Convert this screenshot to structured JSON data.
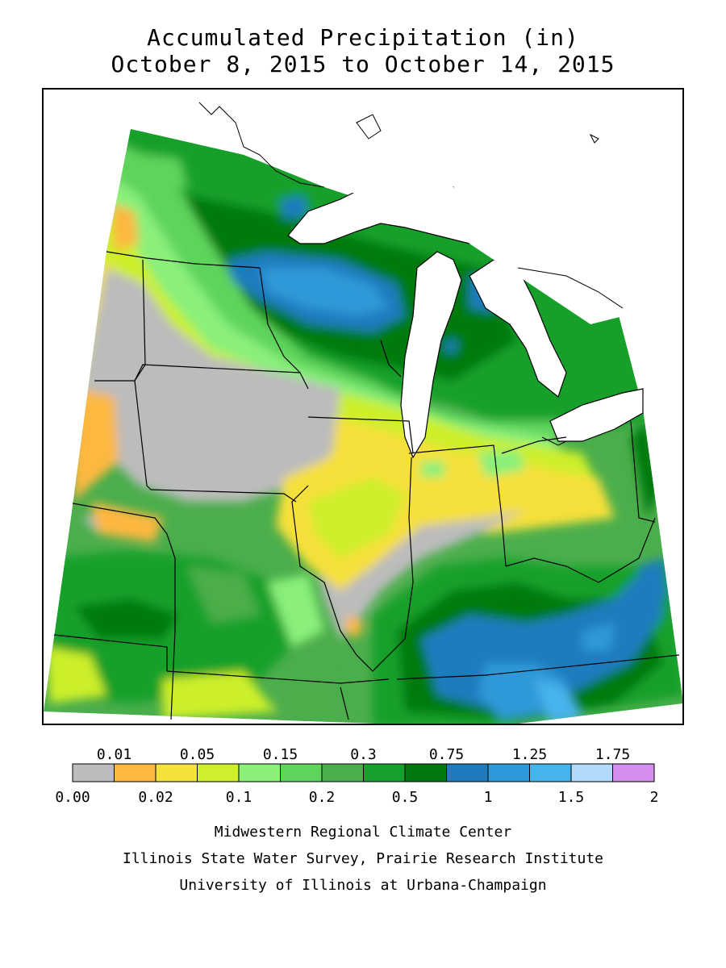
{
  "title": {
    "line1": "Accumulated Precipitation (in)",
    "line2": "October 8, 2015 to October 14, 2015"
  },
  "legend": {
    "colors": [
      "#bcbcbc",
      "#fdb840",
      "#f6e03a",
      "#cdef2c",
      "#8af07a",
      "#5fd45c",
      "#4bae4c",
      "#17a02b",
      "#007a10",
      "#1e7bbe",
      "#2e99d8",
      "#46b4ec",
      "#b2dafa",
      "#d48ef0"
    ],
    "top_labels": [
      "0.01",
      "0.05",
      "0.15",
      "0.3",
      "0.75",
      "1.25",
      "1.75"
    ],
    "bottom_labels": [
      "0.00",
      "0.02",
      "0.1",
      "0.2",
      "0.5",
      "1",
      "1.5",
      "2"
    ]
  },
  "credits": {
    "line1": "Midwestern Regional Climate Center",
    "line2": "Illinois State Water Survey, Prairie Research Institute",
    "line3": "University of Illinois at Urbana-Champaign"
  },
  "map": {
    "region": "Midwest US",
    "lake_color": "#ffffff",
    "outside_color": "#ffffff"
  }
}
